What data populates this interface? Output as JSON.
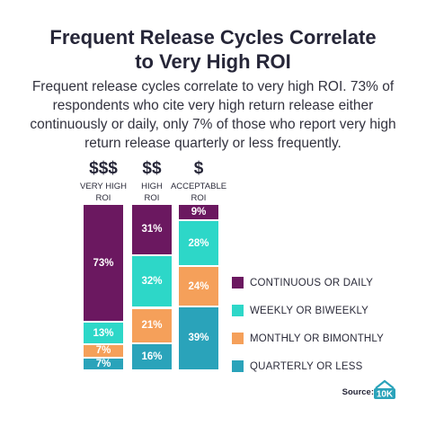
{
  "title_line1": "Frequent Release Cycles Correlate",
  "title_line2": "to Very High ROI",
  "subtitle": "Frequent release cycles correlate to very high ROI. 73% of respondents who cite very high return release either continuously or daily, only 7% of those who report very high return release quarterly or less frequently.",
  "source_label": "Source:",
  "logo_text": "10K",
  "colors": {
    "continuous": "#6b1860",
    "weekly": "#2dd7c8",
    "monthly": "#f5a05a",
    "quarterly": "#2aa3ba"
  },
  "chart_data": {
    "type": "bar",
    "stacked": true,
    "orientation": "vertical",
    "categories": [
      {
        "symbol": "$$$",
        "label": "VERY HIGH\nROI"
      },
      {
        "symbol": "$$",
        "label": "HIGH\nROI"
      },
      {
        "symbol": "$",
        "label": "ACCEPTABLE\nROI"
      }
    ],
    "series": [
      {
        "name": "QUARTERLY OR LESS",
        "color_key": "quarterly",
        "values": [
          7,
          16,
          39
        ]
      },
      {
        "name": "MONTHLY OR BIMONTHLY",
        "color_key": "monthly",
        "values": [
          7,
          21,
          24
        ]
      },
      {
        "name": "WEEKLY OR BIWEEKLY",
        "color_key": "weekly",
        "values": [
          13,
          32,
          28
        ]
      },
      {
        "name": "CONTINUOUS OR DAILY",
        "color_key": "continuous",
        "values": [
          73,
          31,
          9
        ]
      }
    ],
    "value_suffix": "%",
    "legend_order": [
      "CONTINUOUS OR DAILY",
      "WEEKLY OR BIWEEKLY",
      "MONTHLY OR BIMONTHLY",
      "QUARTERLY OR LESS"
    ],
    "legend_position": "right"
  }
}
